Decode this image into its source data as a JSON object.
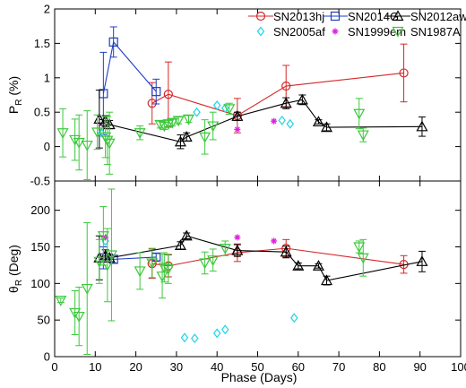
{
  "chart_data": {
    "type": "scatter",
    "xlabel": "Phase (Days)",
    "xlim": [
      0,
      100
    ],
    "x_ticks": [
      0,
      10,
      20,
      30,
      40,
      50,
      60,
      70,
      80,
      90,
      100
    ],
    "legend_position": "top",
    "legend": [
      "SN2013hj",
      "SN2014G",
      "SN2012aw",
      "SN2005af",
      "SN1999em",
      "SN1987A"
    ],
    "panels": [
      {
        "ylabel_main": "P",
        "ylabel_sub": "R",
        "ylabel_tail": " (%)",
        "ylim": [
          -0.5,
          2
        ],
        "y_ticks": [
          -0.5,
          0,
          0.5,
          1,
          1.5,
          2
        ],
        "series": [
          {
            "name": "SN2013hj",
            "marker": "circle",
            "color": "#d62728",
            "connect": true,
            "points": [
              {
                "x": 24,
                "y": 0.63,
                "err": 0.3
              },
              {
                "x": 28,
                "y": 0.76,
                "err": 0.47
              },
              {
                "x": 45,
                "y": 0.45,
                "err": 0.25
              },
              {
                "x": 57,
                "y": 0.88,
                "err": 0.3
              },
              {
                "x": 86,
                "y": 1.07,
                "err": 0.42
              }
            ]
          },
          {
            "name": "SN2014G",
            "marker": "square",
            "color": "#1f3fc4",
            "connect": true,
            "points": [
              {
                "x": 12,
                "y": 0.77,
                "err": 0.6
              },
              {
                "x": 14.5,
                "y": 1.52,
                "err": 0.22
              },
              {
                "x": 25,
                "y": 0.8,
                "err": 0.18
              }
            ]
          },
          {
            "name": "SN2012aw",
            "marker": "triangle-up",
            "color": "#000000",
            "connect": true,
            "points": [
              {
                "x": 11,
                "y": 0.4,
                "err": 0.42
              },
              {
                "x": 12.5,
                "y": 0.37,
                "err": 0.08
              },
              {
                "x": 13.5,
                "y": 0.32,
                "err": 0.06
              },
              {
                "x": 31,
                "y": 0.07,
                "err": 0.1
              },
              {
                "x": 32.5,
                "y": 0.14,
                "err": 0.06
              },
              {
                "x": 45,
                "y": 0.44,
                "err": 0.06
              },
              {
                "x": 57,
                "y": 0.63,
                "err": 0.08
              },
              {
                "x": 61,
                "y": 0.68,
                "err": 0.07
              },
              {
                "x": 65,
                "y": 0.36,
                "err": 0.03
              },
              {
                "x": 67,
                "y": 0.28,
                "err": 0.05
              },
              {
                "x": 90.5,
                "y": 0.29,
                "err": 0.14
              }
            ]
          },
          {
            "name": "SN2005af",
            "marker": "diamond",
            "color": "#22d3e6",
            "connect": false,
            "points": [
              {
                "x": 11.5,
                "y": 0.2
              },
              {
                "x": 35,
                "y": 0.5
              },
              {
                "x": 40,
                "y": 0.6
              },
              {
                "x": 42,
                "y": 0.56
              },
              {
                "x": 56,
                "y": 0.38
              },
              {
                "x": 58,
                "y": 0.33
              }
            ]
          },
          {
            "name": "SN1999em",
            "marker": "asterisk",
            "color": "#e020e0",
            "connect": false,
            "points": [
              {
                "x": 45,
                "y": 0.25
              },
              {
                "x": 54,
                "y": 0.37
              }
            ]
          },
          {
            "name": "SN1987A",
            "marker": "triangle-down",
            "color": "#3cc83c",
            "connect": false,
            "points": [
              {
                "x": 2,
                "y": 0.2,
                "err": 0.35
              },
              {
                "x": 5,
                "y": 0.1,
                "err": 0.3
              },
              {
                "x": 6,
                "y": 0.06,
                "err": 0.4
              },
              {
                "x": 8,
                "y": 0.02,
                "err": 0.5
              },
              {
                "x": 10.5,
                "y": 0.21,
                "err": 0.25
              },
              {
                "x": 12.5,
                "y": 0.14,
                "err": 0.3
              },
              {
                "x": 13,
                "y": 0.09,
                "err": 0.35
              },
              {
                "x": 13.5,
                "y": 0.05,
                "err": 0.45
              },
              {
                "x": 21,
                "y": 0.2,
                "err": 0.1
              },
              {
                "x": 26,
                "y": 0.32,
                "err": 0.05
              },
              {
                "x": 27,
                "y": 0.3,
                "err": 0.05
              },
              {
                "x": 28,
                "y": 0.33,
                "err": 0.05
              },
              {
                "x": 29,
                "y": 0.35,
                "err": 0.05
              },
              {
                "x": 30.5,
                "y": 0.38,
                "err": 0.05
              },
              {
                "x": 33,
                "y": 0.4,
                "err": 0.05
              },
              {
                "x": 37,
                "y": 0.14,
                "err": 0.25
              },
              {
                "x": 39,
                "y": 0.3,
                "err": 0.2
              },
              {
                "x": 43,
                "y": 0.55,
                "err": 0.08
              },
              {
                "x": 75,
                "y": 0.48,
                "err": 0.22
              },
              {
                "x": 76,
                "y": 0.17,
                "err": 0.1
              }
            ]
          }
        ]
      },
      {
        "ylabel_main": "θ",
        "ylabel_sub": "R",
        "ylabel_tail": " (Deg)",
        "ylim": [
          0,
          240
        ],
        "y_ticks": [
          0,
          50,
          100,
          150,
          200
        ],
        "series": [
          {
            "name": "SN2013hj",
            "marker": "circle",
            "color": "#d62728",
            "connect": true,
            "points": [
              {
                "x": 24,
                "y": 127,
                "err": 20
              },
              {
                "x": 28,
                "y": 124,
                "err": 15
              },
              {
                "x": 45,
                "y": 142,
                "err": 12
              },
              {
                "x": 57,
                "y": 148,
                "err": 12
              },
              {
                "x": 86,
                "y": 126,
                "err": 12
              }
            ]
          },
          {
            "name": "SN2014G",
            "marker": "square",
            "color": "#1f3fc4",
            "connect": true,
            "points": [
              {
                "x": 12,
                "y": 135,
                "err": 15
              },
              {
                "x": 14.5,
                "y": 133,
                "err": 5
              },
              {
                "x": 25,
                "y": 136,
                "err": 5
              }
            ]
          },
          {
            "name": "SN2012aw",
            "marker": "triangle-up",
            "color": "#000000",
            "connect": true,
            "points": [
              {
                "x": 11,
                "y": 135,
                "err": 30
              },
              {
                "x": 12.5,
                "y": 138,
                "err": 8
              },
              {
                "x": 13.5,
                "y": 135,
                "err": 5
              },
              {
                "x": 31,
                "y": 152,
                "err": 5
              },
              {
                "x": 32.5,
                "y": 165,
                "err": 4
              },
              {
                "x": 45,
                "y": 145,
                "err": 8
              },
              {
                "x": 57,
                "y": 143,
                "err": 8
              },
              {
                "x": 60,
                "y": 124,
                "err": 4
              },
              {
                "x": 65,
                "y": 124,
                "err": 3
              },
              {
                "x": 67,
                "y": 104,
                "err": 6
              },
              {
                "x": 90.5,
                "y": 130,
                "err": 14
              }
            ]
          },
          {
            "name": "SN2005af",
            "marker": "diamond",
            "color": "#22d3e6",
            "connect": false,
            "points": [
              {
                "x": 12.5,
                "y": 158
              },
              {
                "x": 32,
                "y": 26
              },
              {
                "x": 34.5,
                "y": 25
              },
              {
                "x": 40,
                "y": 32
              },
              {
                "x": 42,
                "y": 37
              },
              {
                "x": 59,
                "y": 53
              }
            ]
          },
          {
            "name": "SN1999em",
            "marker": "asterisk",
            "color": "#e020e0",
            "connect": false,
            "points": [
              {
                "x": 12.5,
                "y": 163
              },
              {
                "x": 45,
                "y": 163
              },
              {
                "x": 54,
                "y": 158
              }
            ]
          },
          {
            "name": "SN1987A",
            "marker": "triangle-down",
            "color": "#3cc83c",
            "connect": false,
            "points": [
              {
                "x": 1.5,
                "y": 77,
                "err": 3
              },
              {
                "x": 5,
                "y": 60,
                "err": 30
              },
              {
                "x": 6,
                "y": 55,
                "err": 40
              },
              {
                "x": 8,
                "y": 93,
                "err": 90
              },
              {
                "x": 11,
                "y": 130,
                "err": 30
              },
              {
                "x": 12,
                "y": 165,
                "err": 40
              },
              {
                "x": 13,
                "y": 125,
                "err": 50
              },
              {
                "x": 14,
                "y": 139,
                "err": 90
              },
              {
                "x": 21,
                "y": 117,
                "err": 25
              },
              {
                "x": 24,
                "y": 128,
                "err": 20
              },
              {
                "x": 26.5,
                "y": 110,
                "err": 30
              },
              {
                "x": 27,
                "y": 122,
                "err": 20
              },
              {
                "x": 28,
                "y": 120,
                "err": 20
              },
              {
                "x": 37,
                "y": 128,
                "err": 15
              },
              {
                "x": 39,
                "y": 132,
                "err": 15
              },
              {
                "x": 42,
                "y": 148,
                "err": 10
              },
              {
                "x": 75,
                "y": 150,
                "err": 8
              },
              {
                "x": 76,
                "y": 135,
                "err": 25
              }
            ]
          }
        ]
      }
    ]
  }
}
